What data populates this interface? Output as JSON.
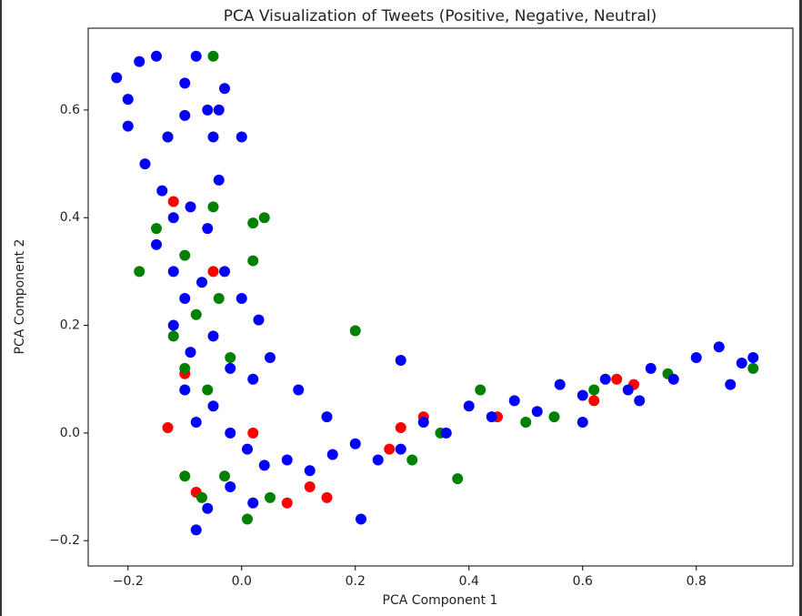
{
  "chart_data": {
    "type": "scatter",
    "title": "PCA Visualization of Tweets (Positive, Negative, Neutral)",
    "x_label": "PCA Component 1",
    "y_label": "PCA Component 2",
    "xlim": [
      -0.27,
      0.97
    ],
    "ylim": [
      -0.247,
      0.752
    ],
    "xticks": [
      {
        "value": -0.2,
        "label": "−0.2"
      },
      {
        "value": 0,
        "label": "0.0"
      },
      0.2,
      0.4,
      0.6,
      0.8
    ],
    "yticks": [
      {
        "value": -0.2,
        "label": "−0.2"
      },
      {
        "value": 0,
        "label": "0.0"
      },
      0.2,
      0.4,
      0.6
    ],
    "series": [
      {
        "color": "#ff0000",
        "x": [
          -0.12,
          -0.05,
          -0.13,
          -0.1,
          -0.08,
          0.02,
          0.08,
          0.15,
          0.26,
          0.28,
          0.32,
          0.45,
          0.62,
          0.66,
          0.69,
          0.12
        ],
        "values": [
          0.43,
          0.3,
          0.01,
          0.11,
          -0.11,
          0.0,
          -0.13,
          -0.12,
          -0.03,
          0.01,
          0.03,
          0.03,
          0.06,
          0.1,
          0.09,
          -0.1
        ]
      },
      {
        "color": "#008000",
        "x": [
          -0.05,
          -0.13,
          -0.18,
          -0.15,
          -0.1,
          -0.05,
          -0.12,
          -0.08,
          -0.04,
          0.02,
          0.04,
          0.02,
          -0.1,
          -0.06,
          -0.02,
          0.2,
          -0.1,
          -0.07,
          -0.03,
          0.01,
          0.05,
          0.3,
          0.38,
          0.42,
          0.5,
          0.55,
          0.62,
          0.75,
          0.9,
          0.35
        ],
        "values": [
          0.7,
          0.55,
          0.3,
          0.38,
          0.33,
          0.42,
          0.18,
          0.22,
          0.25,
          0.39,
          0.4,
          0.32,
          0.12,
          0.08,
          0.14,
          0.19,
          -0.08,
          -0.12,
          -0.08,
          -0.16,
          -0.12,
          -0.05,
          -0.085,
          0.08,
          0.02,
          0.03,
          0.08,
          0.11,
          0.12,
          0.0
        ]
      },
      {
        "color": "#0000ff",
        "x": [
          -0.22,
          -0.2,
          -0.18,
          -0.15,
          -0.1,
          -0.08,
          -0.06,
          -0.03,
          -0.05,
          -0.1,
          -0.2,
          -0.17,
          -0.14,
          -0.12,
          -0.09,
          -0.06,
          -0.04,
          -0.15,
          -0.12,
          -0.1,
          -0.07,
          -0.03,
          0.0,
          0.03,
          -0.12,
          -0.09,
          -0.05,
          -0.02,
          0.02,
          0.05,
          -0.1,
          -0.08,
          -0.05,
          -0.02,
          0.01,
          0.04,
          0.08,
          0.12,
          0.16,
          0.2,
          0.24,
          0.28,
          0.32,
          0.36,
          0.4,
          0.44,
          0.48,
          0.52,
          0.56,
          0.6,
          0.64,
          0.68,
          0.72,
          0.76,
          0.8,
          0.84,
          0.88,
          0.9,
          -0.08,
          -0.06,
          -0.02,
          0.02,
          0.21,
          0.28,
          0.1,
          0.15,
          0.6,
          0.7,
          0.86,
          -0.13,
          -0.04,
          0.0
        ],
        "values": [
          0.66,
          0.62,
          0.69,
          0.7,
          0.65,
          0.7,
          0.6,
          0.64,
          0.55,
          0.59,
          0.57,
          0.5,
          0.45,
          0.4,
          0.42,
          0.38,
          0.47,
          0.35,
          0.3,
          0.25,
          0.28,
          0.3,
          0.25,
          0.21,
          0.2,
          0.15,
          0.18,
          0.12,
          0.1,
          0.14,
          0.08,
          0.02,
          0.05,
          0.0,
          -0.03,
          -0.06,
          -0.05,
          -0.07,
          -0.04,
          -0.02,
          -0.05,
          -0.03,
          0.02,
          0.0,
          0.05,
          0.03,
          0.06,
          0.04,
          0.09,
          0.07,
          0.1,
          0.08,
          0.12,
          0.1,
          0.14,
          0.16,
          0.13,
          0.14,
          -0.18,
          -0.14,
          -0.1,
          -0.13,
          -0.16,
          0.135,
          0.08,
          0.03,
          0.02,
          0.06,
          0.09,
          0.55,
          0.6,
          0.55
        ]
      }
    ]
  }
}
